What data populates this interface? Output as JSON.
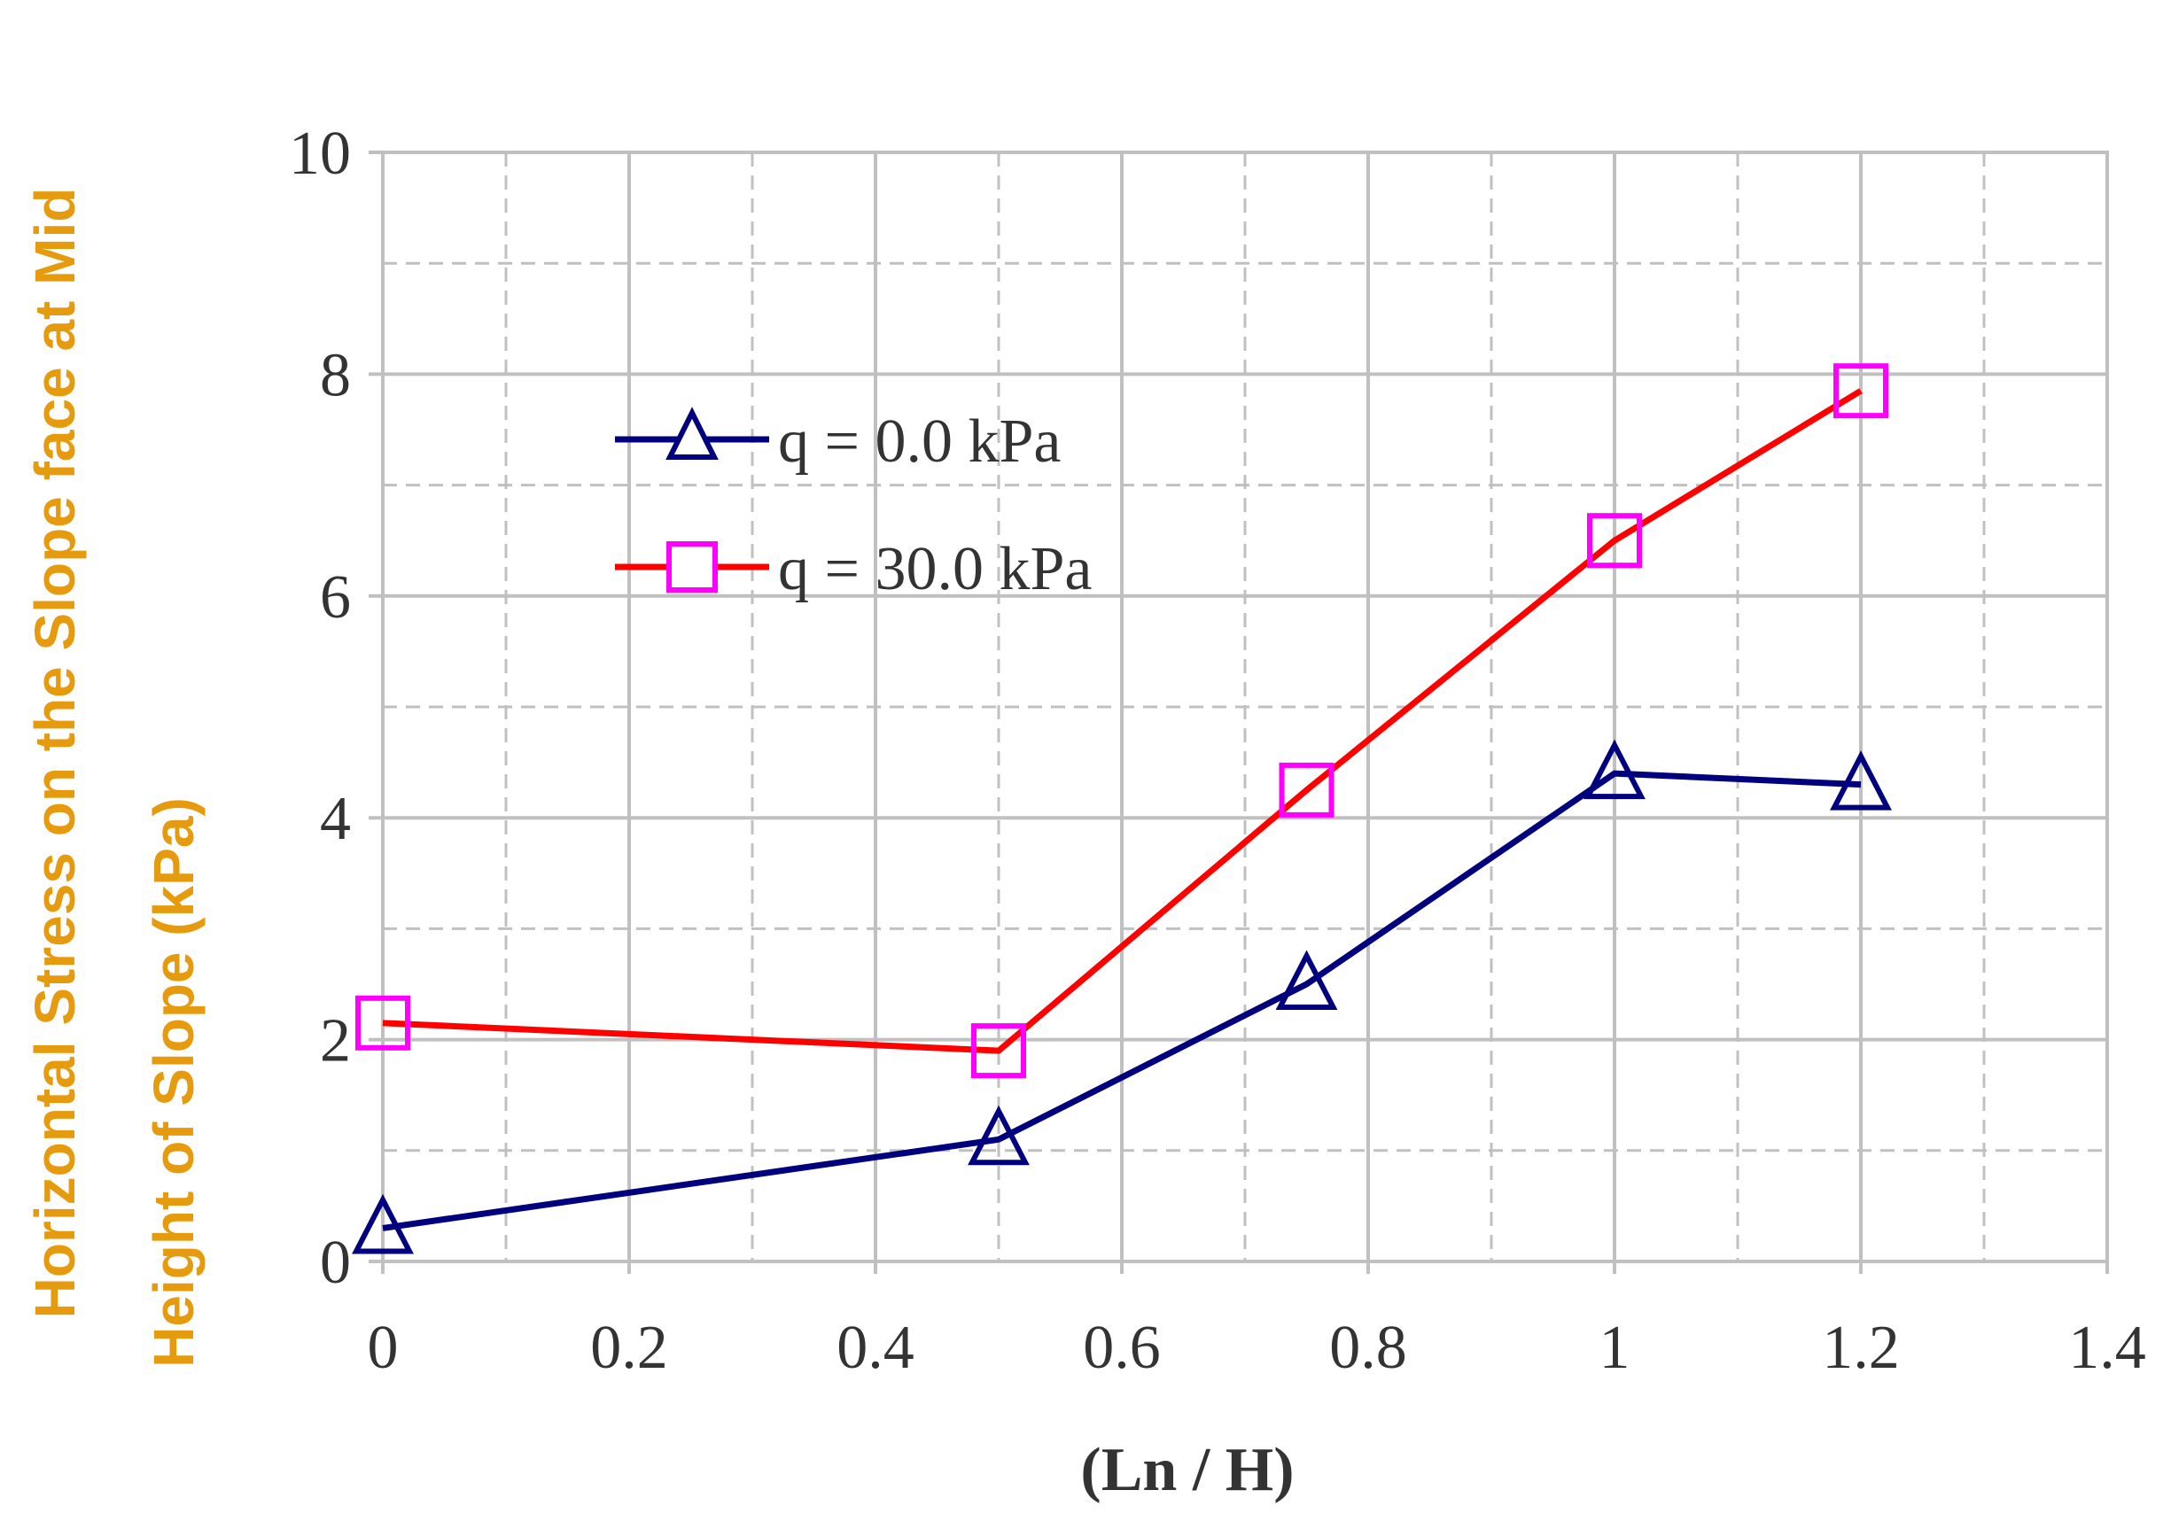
{
  "chart_data": {
    "type": "line",
    "title": "",
    "xlabel": "(Ln / H)",
    "ylabel_line1": "Horizontal Stress on the Slope face at Mid",
    "ylabel_line2": "Height of Slope (kPa)",
    "xlim": [
      0,
      1.4
    ],
    "ylim": [
      0,
      10
    ],
    "x_ticks": [
      0,
      0.2,
      0.4,
      0.6,
      0.8,
      1,
      1.2,
      1.4
    ],
    "x_tick_labels": [
      "0",
      "0.2",
      "0.4",
      "0.6",
      "0.8",
      "1",
      "1.2",
      "1.4"
    ],
    "y_ticks": [
      0,
      2,
      4,
      6,
      8,
      10
    ],
    "y_tick_labels": [
      "0",
      "2",
      "4",
      "6",
      "8",
      "10"
    ],
    "grid": true,
    "minor_grid_dashed": true,
    "legend_position": "upper-left inside plot",
    "series": [
      {
        "name": "q = 0.0 kPa",
        "marker": "triangle",
        "line_color": "#00007f",
        "marker_color": "#00007f",
        "points": [
          {
            "x": 0,
            "y": 0.3
          },
          {
            "x": 0.5,
            "y": 1.1
          },
          {
            "x": 0.75,
            "y": 2.5
          },
          {
            "x": 1.0,
            "y": 4.4
          },
          {
            "x": 1.2,
            "y": 4.3
          }
        ]
      },
      {
        "name": "q = 30.0 kPa",
        "marker": "square",
        "line_color": "#ff0000",
        "marker_color": "#ff00ff",
        "points": [
          {
            "x": 0,
            "y": 2.15
          },
          {
            "x": 0.5,
            "y": 1.9
          },
          {
            "x": 0.75,
            "y": 4.25
          },
          {
            "x": 1.0,
            "y": 6.5
          },
          {
            "x": 1.2,
            "y": 7.85
          }
        ]
      }
    ]
  },
  "colors": {
    "ylabel": "#e69a0e",
    "axis_text": "#333333",
    "grid": "#c0c0c0"
  }
}
